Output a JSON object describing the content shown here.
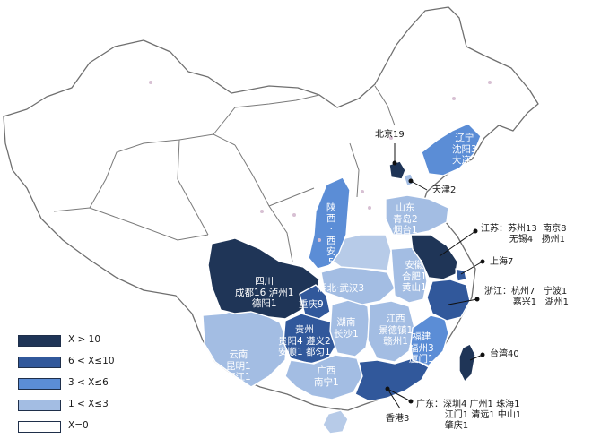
{
  "legend": [
    {
      "label": "X > 10",
      "color": "#1f3557"
    },
    {
      "label": "6 < X≤10",
      "color": "#31589b"
    },
    {
      "label": "3 < X≤6",
      "color": "#5b8dd6"
    },
    {
      "label": "1 < X≤3",
      "color": "#a3bde3"
    },
    {
      "label": "X=0",
      "color": "#ffffff"
    }
  ],
  "colors": {
    "c1": "#1f3557",
    "c2": "#31589b",
    "c3": "#5b8dd6",
    "c4": "#a3bde3",
    "c4b": "#b7cbe8",
    "border": "#6f6f6f"
  },
  "labels": {
    "sichuan": "四川\n成都16 泸州1\n德阳1",
    "chongqing": "重庆9",
    "guizhou": "贵州\n贵阳4 遵义2\n安顺1 都匀1",
    "yunnan": "云南\n昆明1\n丽江1",
    "guangxi": "广西\n南宁1",
    "hunan": "湖南\n长沙1",
    "jiangxi": "江西\n景德镇1\n赣州1",
    "fujian": "福建\n福州3\n厦门1",
    "hubei": "湖北·武汉3",
    "anhui": "安徽\n合肥1\n黄山1",
    "shandong": "山东\n青岛2\n烟台1",
    "shaanxi": "陕\n西\n·\n西\n安\n5",
    "liaoning": "辽宁\n沈阳3\n大连1",
    "beijing": "北京19",
    "tianjin": "天津2",
    "jiangsu": "江苏：苏州13  南京8\n          无锡4   扬州1",
    "shanghai": "上海7",
    "zhejiang": "浙江：杭州7   宁波1\n          嘉兴1   湖州1",
    "taiwan": "台湾40",
    "guangdong": "广东：深圳4 广州1 珠海1\n          江门1 清远1 中山1\n          肇庆1",
    "hongkong": "香港3"
  }
}
